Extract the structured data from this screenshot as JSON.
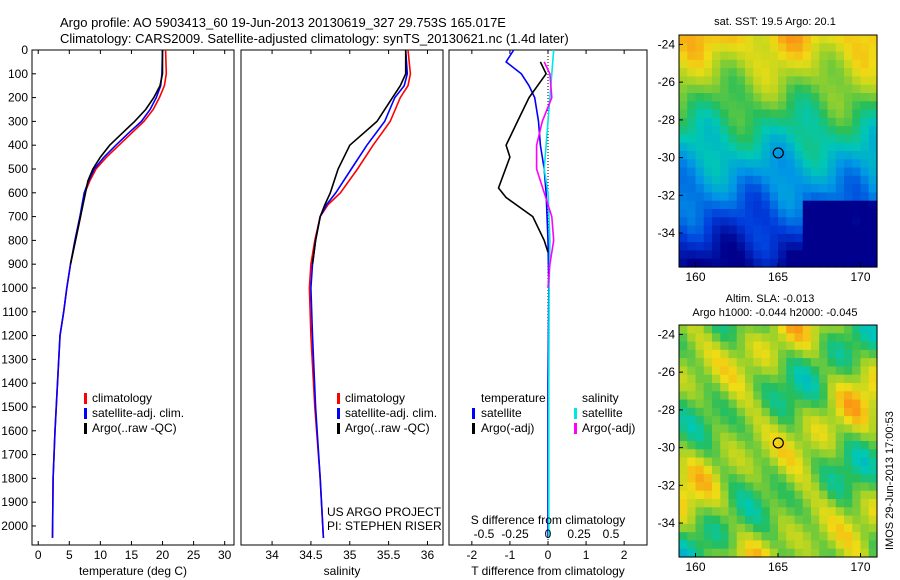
{
  "header": {
    "line1": "Argo profile: AO 5903413_60 19-Jun-2013 20130619_327 29.753S 165.017E",
    "line2": "Climatology: CARS2009. Satellite-adjusted climatology: synTS_20130621.nc (1.4d later)"
  },
  "colors": {
    "climatology": "#ff0000",
    "satellite": "#0000ff",
    "argo": "#000000",
    "sal_satellite": "#00e5e5",
    "sal_argo": "#ff00ff"
  },
  "chart_data": [
    {
      "type": "line",
      "id": "temperature_profile",
      "xlabel": "temperature (deg C)",
      "xlim": [
        -1,
        31.5
      ],
      "ylim": [
        2080,
        0
      ],
      "xticks": [
        0,
        5,
        10,
        15,
        20,
        25,
        30
      ],
      "yticks": [
        0,
        100,
        200,
        300,
        400,
        500,
        600,
        700,
        800,
        900,
        1000,
        1100,
        1200,
        1300,
        1400,
        1500,
        1600,
        1700,
        1800,
        1900,
        2000
      ],
      "legend": [
        "climatology",
        "satellite-adj. clim.",
        "Argo(..raw -QC)"
      ],
      "series": [
        {
          "name": "climatology",
          "x": [
            20.5,
            20.6,
            20.3,
            19.5,
            18.5,
            17,
            15,
            13,
            11,
            9.3,
            8.3,
            7.5,
            6.8,
            6.0,
            5.2,
            4.6,
            4.1,
            3.5,
            3.1,
            2.7,
            2.4,
            2.3
          ],
          "y": [
            0,
            100,
            150,
            200,
            250,
            300,
            350,
            400,
            450,
            500,
            550,
            600,
            700,
            800,
            900,
            1000,
            1100,
            1200,
            1400,
            1600,
            1800,
            2050
          ]
        },
        {
          "name": "satellite-adj. clim.",
          "x": [
            20.0,
            19.9,
            19.7,
            19.0,
            18.0,
            16.6,
            14.5,
            12.5,
            10.6,
            9.0,
            8.1,
            7.4,
            6.7,
            5.9,
            5.2,
            4.6,
            4.1,
            3.5,
            3.1,
            2.7,
            2.4,
            2.3
          ],
          "y": [
            0,
            100,
            150,
            200,
            250,
            300,
            350,
            400,
            450,
            500,
            550,
            600,
            700,
            800,
            900,
            1000,
            1100,
            1200,
            1400,
            1600,
            1800,
            2050
          ]
        },
        {
          "name": "Argo(..raw -QC)",
          "x": [
            20.0,
            20.0,
            19.6,
            18.6,
            17.3,
            15.5,
            13.5,
            11.5,
            10.0,
            8.8,
            8.0,
            7.6,
            6.8,
            6.0,
            5.2
          ],
          "y": [
            0,
            100,
            150,
            200,
            250,
            300,
            350,
            400,
            450,
            500,
            550,
            600,
            700,
            800,
            900
          ]
        }
      ]
    },
    {
      "type": "line",
      "id": "salinity_profile",
      "xlabel": "salinity",
      "xlim": [
        33.6,
        36.2
      ],
      "ylim": [
        2080,
        0
      ],
      "xticks": [
        34,
        34.5,
        35,
        35.5,
        36
      ],
      "legend": [
        "climatology",
        "satellite-adj. clim.",
        "Argo(..raw -QC)"
      ],
      "annotations": [
        "US ARGO PROJECT",
        "PI: STEPHEN RISER"
      ],
      "series": [
        {
          "name": "climatology",
          "x": [
            35.75,
            35.78,
            35.75,
            35.65,
            35.52,
            35.3,
            35.1,
            34.88,
            34.72,
            34.62,
            34.55,
            34.5,
            34.48,
            34.5,
            34.55,
            34.62,
            34.66
          ],
          "y": [
            0,
            100,
            150,
            200,
            300,
            400,
            500,
            600,
            650,
            700,
            800,
            900,
            1000,
            1200,
            1500,
            1800,
            2050
          ]
        },
        {
          "name": "satellite-adj. clim.",
          "x": [
            35.72,
            35.74,
            35.7,
            35.58,
            35.45,
            35.22,
            35.02,
            34.82,
            34.7,
            34.62,
            34.56,
            34.52,
            34.5,
            34.52,
            34.56,
            34.62,
            34.66
          ],
          "y": [
            0,
            100,
            150,
            200,
            300,
            400,
            500,
            600,
            650,
            700,
            800,
            900,
            1000,
            1200,
            1500,
            1800,
            2050
          ]
        },
        {
          "name": "Argo(..raw -QC)",
          "x": [
            35.72,
            35.72,
            35.65,
            35.55,
            35.35,
            35.0,
            34.85,
            34.75,
            34.68,
            34.62,
            34.56,
            34.52
          ],
          "y": [
            0,
            100,
            150,
            200,
            300,
            400,
            500,
            600,
            650,
            700,
            800,
            900
          ]
        }
      ]
    },
    {
      "type": "line",
      "id": "difference_from_climatology",
      "xlabel": "T difference from climatology",
      "xlabel_top": "S difference from climatology",
      "xlim": [
        -2.6,
        2.6
      ],
      "ylim": [
        2080,
        0
      ],
      "xticks": [
        -2,
        -1,
        0,
        1,
        2
      ],
      "top_ticks": [
        "-0.5",
        "-0.25",
        "0",
        "0.25",
        "0.5"
      ],
      "legend_titles": [
        "temperature",
        "salinity"
      ],
      "legend": [
        "satellite",
        "Argo(-adj)",
        "satellite",
        "Argo(-adj)"
      ],
      "series": [
        {
          "name": "satellite",
          "x": [
            -0.9,
            -1.1,
            -0.7,
            -0.5,
            -0.35,
            -0.25,
            -0.2,
            -0.1,
            -0.05,
            0,
            0.02,
            0,
            0,
            0
          ],
          "y": [
            0,
            50,
            100,
            150,
            200,
            300,
            400,
            500,
            600,
            800,
            1000,
            1400,
            1800,
            2050
          ]
        },
        {
          "name": "Argo(-adj)",
          "x": [
            -0.2,
            -0.05,
            -0.5,
            -0.8,
            -1.1,
            -1.0,
            -1.3,
            -1.1,
            -0.4,
            -0.1,
            0
          ],
          "y": [
            50,
            100,
            200,
            300,
            400,
            450,
            580,
            620,
            700,
            800,
            850
          ]
        },
        {
          "name": "satellite",
          "x": [
            0.15,
            0.1,
            0.05,
            0,
            -0.05,
            -0.1,
            0,
            0.05,
            0.03,
            0.02,
            0.02
          ],
          "y": [
            0,
            100,
            200,
            300,
            400,
            500,
            600,
            800,
            1000,
            1400,
            2050
          ]
        },
        {
          "name": "Argo(-adj)",
          "x": [
            -0.1,
            0.05,
            0.1,
            -0.15,
            -0.3,
            -0.3,
            -0.1,
            0.1,
            0.15,
            0.05,
            0
          ],
          "y": [
            50,
            100,
            200,
            300,
            400,
            500,
            600,
            700,
            800,
            900,
            1000
          ]
        }
      ]
    },
    {
      "type": "heatmap",
      "id": "sst_map",
      "title": "sat. SST: 19.5 Argo: 20.1",
      "xlim": [
        159,
        171
      ],
      "ylim": [
        -35.8,
        -23.5
      ],
      "xticks": [
        160,
        165,
        170
      ],
      "yticks": [
        -24,
        -26,
        -28,
        -30,
        -32,
        -34
      ],
      "marker": {
        "lon": 165.017,
        "lat": -29.753
      }
    },
    {
      "type": "heatmap",
      "id": "sla_map",
      "title": "Altim. SLA: -0.013",
      "subtitle": "Argo h1000: -0.044 h2000: -0.045",
      "xlim": [
        159,
        171
      ],
      "ylim": [
        -35.8,
        -23.5
      ],
      "xticks": [
        160,
        165,
        170
      ],
      "yticks": [
        -24,
        -26,
        -28,
        -30,
        -32,
        -34
      ],
      "marker": {
        "lon": 165.017,
        "lat": -29.753
      }
    }
  ],
  "side_text": "IMOS 29-Jun-2013 17:00:53"
}
